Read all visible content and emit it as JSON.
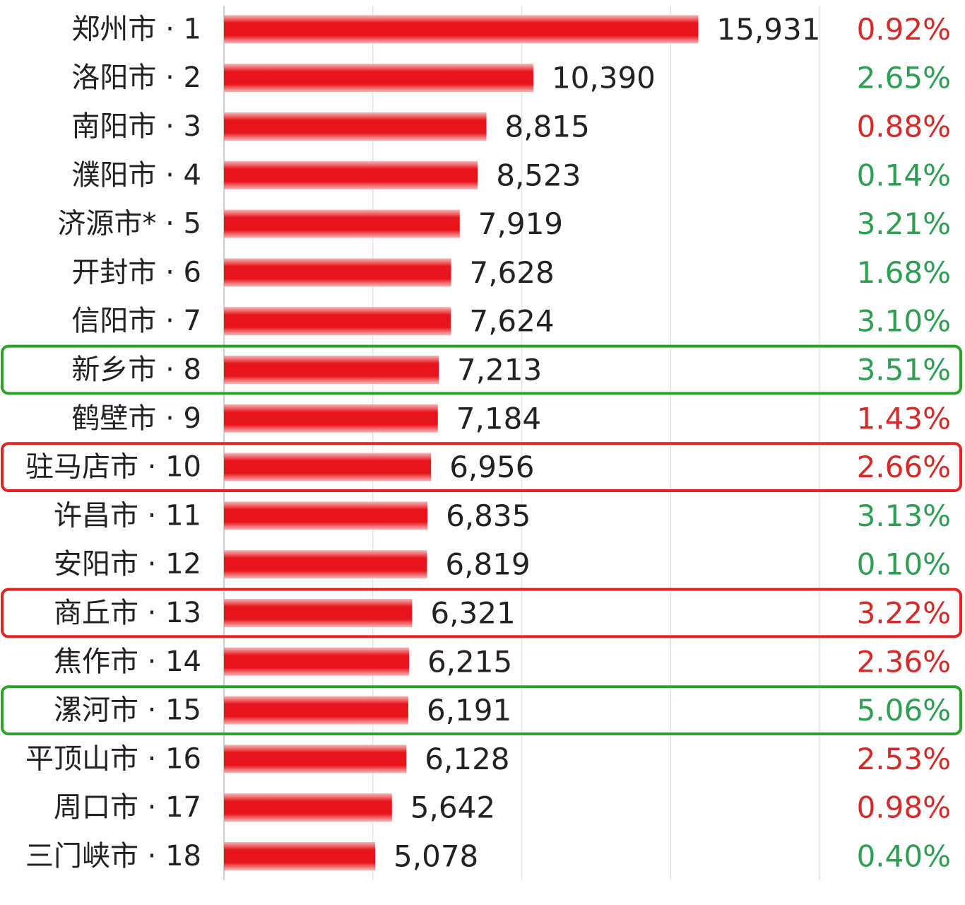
{
  "chart_data": {
    "type": "bar",
    "orientation": "horizontal",
    "categories": [
      "郑州市 · 1",
      "洛阳市 · 2",
      "南阳市 · 3",
      "濮阳市 · 4",
      "济源市* · 5",
      "开封市 · 6",
      "信阳市 · 7",
      "新乡市 · 8",
      "鹤壁市 · 9",
      "驻马店市 · 10",
      "许昌市 · 11",
      "安阳市 · 12",
      "商丘市 · 13",
      "焦作市 · 14",
      "漯河市 · 15",
      "平顶山市 · 16",
      "周口市 · 17",
      "三门峡市 · 18"
    ],
    "values": [
      15931,
      10390,
      8815,
      8523,
      7919,
      7628,
      7624,
      7213,
      7184,
      6956,
      6835,
      6819,
      6321,
      6215,
      6191,
      6128,
      5642,
      5078
    ],
    "value_labels": [
      "15,931",
      "10,390",
      "8,815",
      "8,523",
      "7,919",
      "7,628",
      "7,624",
      "7,213",
      "7,184",
      "6,956",
      "6,835",
      "6,819",
      "6,321",
      "6,215",
      "6,191",
      "6,128",
      "5,642",
      "5,078"
    ],
    "percent_labels": [
      "0.92%",
      "2.65%",
      "0.88%",
      "0.14%",
      "3.21%",
      "1.68%",
      "3.10%",
      "3.51%",
      "1.43%",
      "2.66%",
      "3.13%",
      "0.10%",
      "3.22%",
      "2.36%",
      "5.06%",
      "2.53%",
      "0.98%",
      "0.40%"
    ],
    "percent_colors": [
      "red",
      "green",
      "red",
      "green",
      "green",
      "green",
      "green",
      "green",
      "red",
      "red",
      "green",
      "green",
      "red",
      "red",
      "green",
      "red",
      "red",
      "green"
    ],
    "highlighted_rows": [
      {
        "index": 7,
        "color": "green"
      },
      {
        "index": 9,
        "color": "red"
      },
      {
        "index": 12,
        "color": "red"
      },
      {
        "index": 14,
        "color": "green"
      }
    ],
    "xlim": [
      0,
      20000
    ],
    "grid": true,
    "colors": {
      "bar": "#e8141b",
      "red": "#d42a2a",
      "green": "#2f9e55",
      "highlight_green": "#28a528",
      "highlight_red": "#e52222"
    }
  }
}
